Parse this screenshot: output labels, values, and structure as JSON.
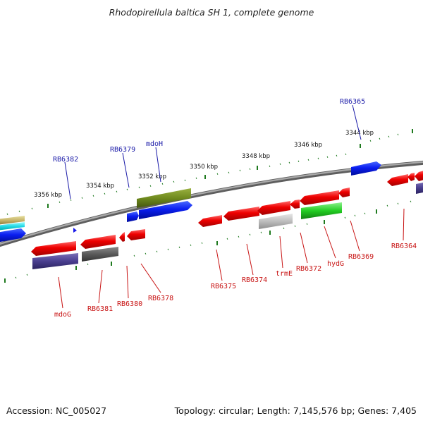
{
  "title": "Rhodopirellula baltica SH 1, complete genome",
  "footer": {
    "accession": "Accession: NC_005027",
    "topology": "Topology: circular; Length: 7,145,576 bp; Genes: 7,405"
  },
  "scale_labels": [
    "3356 kbp",
    "3354 kbp",
    "3352 kbp",
    "3350 kbp",
    "3348 kbp",
    "3346 kbp",
    "3344 kbp"
  ],
  "top_genes": [
    "RB6382",
    "RB6379",
    "mdoH",
    "RB6365"
  ],
  "bottom_genes": [
    "mdoG",
    "RB6381",
    "RB6380",
    "RB6378",
    "RB6375",
    "RB6374",
    "trmE",
    "RB6372",
    "hydG",
    "RB6369",
    "RB6364"
  ],
  "colors": {
    "top_label": "#1a1aa8",
    "bottom_label": "#c81414",
    "tick": "#1f7a1f",
    "backbone": "#8a8a8a"
  }
}
